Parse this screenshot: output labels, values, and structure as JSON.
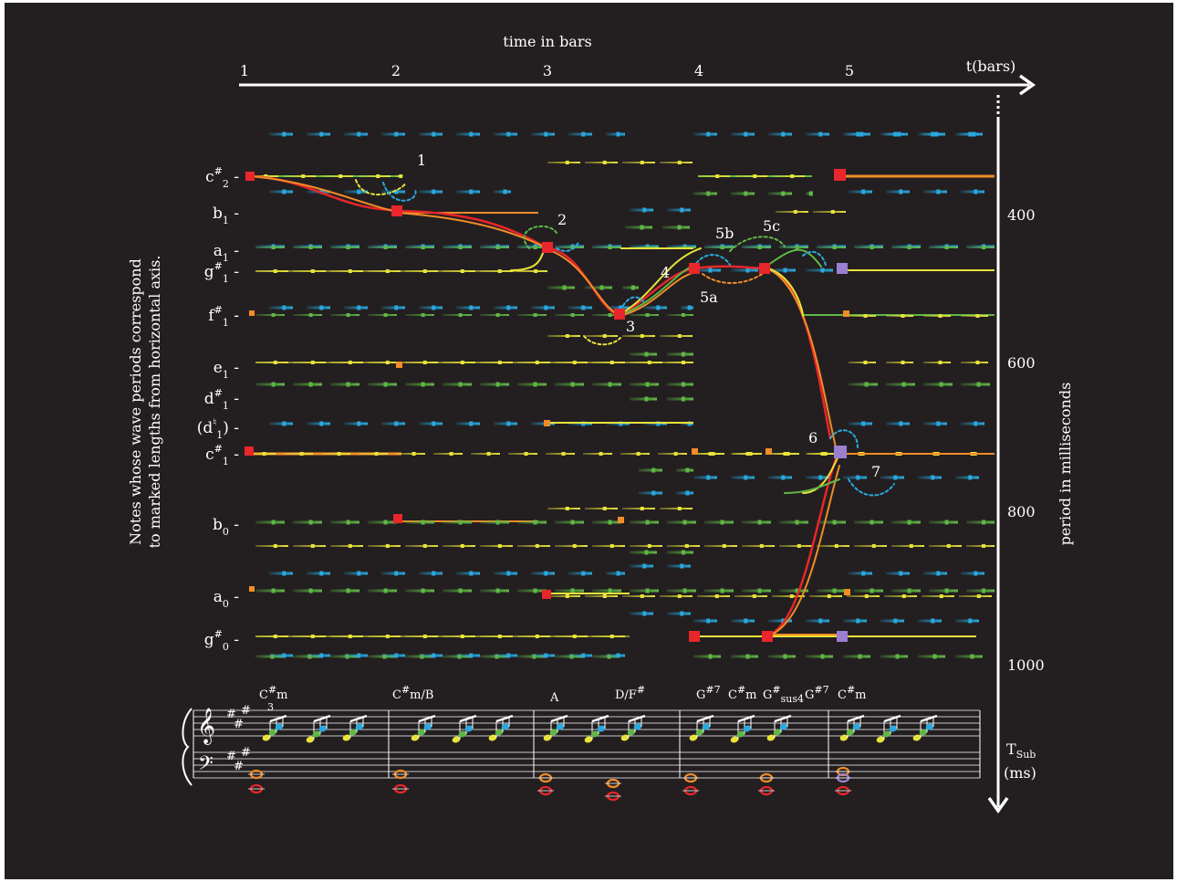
{
  "top_axis": {
    "title": "time in bars",
    "end_label": "t(bars)",
    "ticks": [
      "1",
      "2",
      "3",
      "4",
      "5"
    ]
  },
  "right_axis": {
    "title": "period in milliseconds",
    "ticks": [
      "400",
      "600",
      "800",
      "1000"
    ],
    "end_label_main": "T",
    "end_label_sub": "Sub",
    "end_label_unit": "(ms)"
  },
  "left_caption": {
    "line1": "Notes whose wave periods correspond",
    "line2": "to marked lengths from horizontal axis."
  },
  "notes": [
    {
      "base": "c",
      "sup": "#",
      "sub": "2"
    },
    {
      "base": "b",
      "sup": "",
      "sub": "1"
    },
    {
      "base": "a",
      "sup": "",
      "sub": "1"
    },
    {
      "base": "g",
      "sup": "#",
      "sub": "1"
    },
    {
      "base": "f",
      "sup": "#",
      "sub": "1"
    },
    {
      "base": "e",
      "sup": "",
      "sub": "1"
    },
    {
      "base": "d",
      "sup": "#",
      "sub": "1"
    },
    {
      "base": "(d",
      "sup": "♮",
      "sub": "1",
      "tail": ")"
    },
    {
      "base": "c",
      "sup": "#",
      "sub": "1"
    },
    {
      "base": "b",
      "sup": "",
      "sub": "0"
    },
    {
      "base": "a",
      "sup": "",
      "sub": "0"
    },
    {
      "base": "g",
      "sup": "#",
      "sub": "0"
    }
  ],
  "step_labels": [
    "1",
    "2",
    "3",
    "4",
    "5a",
    "5b",
    "5c",
    "6",
    "7"
  ],
  "chords": [
    {
      "text": "C",
      "sup": "#",
      "tail": "m",
      "below": "3"
    },
    {
      "text": "C",
      "sup": "#",
      "tail": "m/B"
    },
    {
      "text": "A"
    },
    {
      "text": "D/F",
      "sup": "#"
    },
    {
      "text": "G",
      "sup": "#7"
    },
    {
      "text": "C",
      "sup": "#",
      "tail": "m"
    },
    {
      "text": "G",
      "sup": "#",
      "subtail": "sus4"
    },
    {
      "text": "G",
      "sup": "#7"
    },
    {
      "text": "C",
      "sup": "#",
      "tail": "m"
    }
  ],
  "colors": {
    "background": "#231f20",
    "foreground": "#ffffff",
    "blue": "#29a9e0",
    "green": "#5fb846",
    "yellow": "#e8e33a",
    "orange": "#f28c28",
    "red": "#e8262b",
    "purple": "#9b7fd0"
  },
  "icons": [
    "treble-clef-icon",
    "bass-clef-icon"
  ]
}
